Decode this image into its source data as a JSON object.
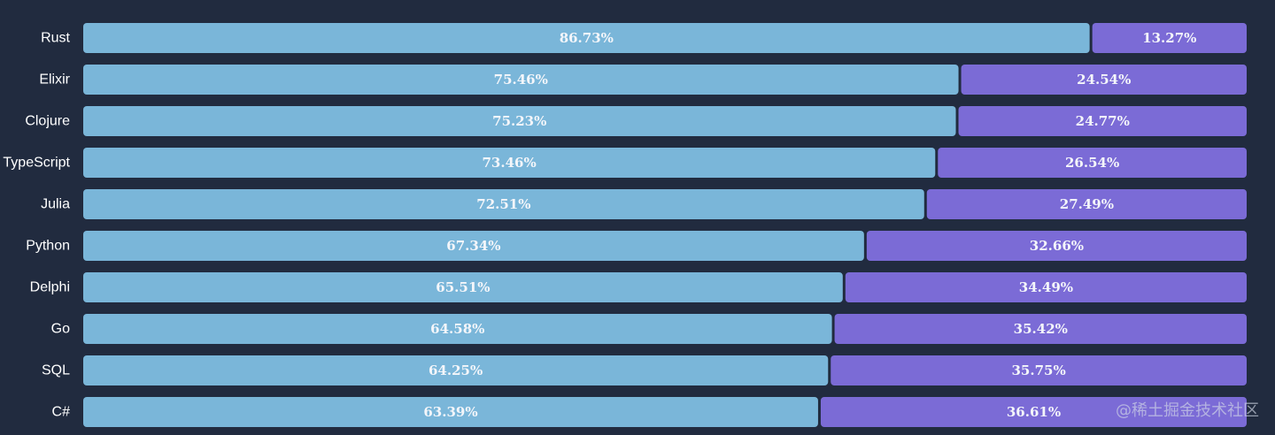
{
  "chart_data": {
    "type": "bar",
    "orientation": "horizontal",
    "stacked": true,
    "normalized": true,
    "categories": [
      "Rust",
      "Elixir",
      "Clojure",
      "TypeScript",
      "Julia",
      "Python",
      "Delphi",
      "Go",
      "SQL",
      "C#"
    ],
    "series": [
      {
        "values": [
          86.73,
          75.46,
          75.23,
          73.46,
          72.51,
          67.34,
          65.51,
          64.58,
          64.25,
          63.39
        ],
        "labels": [
          "86.73%",
          "75.46%",
          "75.23%",
          "73.46%",
          "72.51%",
          "67.34%",
          "65.51%",
          "64.58%",
          "64.25%",
          "63.39%"
        ],
        "color": "#7ab6d9"
      },
      {
        "values": [
          13.27,
          24.54,
          24.77,
          26.54,
          27.49,
          32.66,
          34.49,
          35.42,
          35.75,
          36.61
        ],
        "labels": [
          "13.27%",
          "24.54%",
          "24.77%",
          "26.54%",
          "27.49%",
          "32.66%",
          "34.49%",
          "35.42%",
          "35.75%",
          "36.61%"
        ],
        "color": "#7b6bd6"
      }
    ],
    "xlim": [
      0,
      100
    ],
    "grid": false,
    "legend": "none"
  },
  "watermark": {
    "text": "@稀土掘金技术社区"
  }
}
